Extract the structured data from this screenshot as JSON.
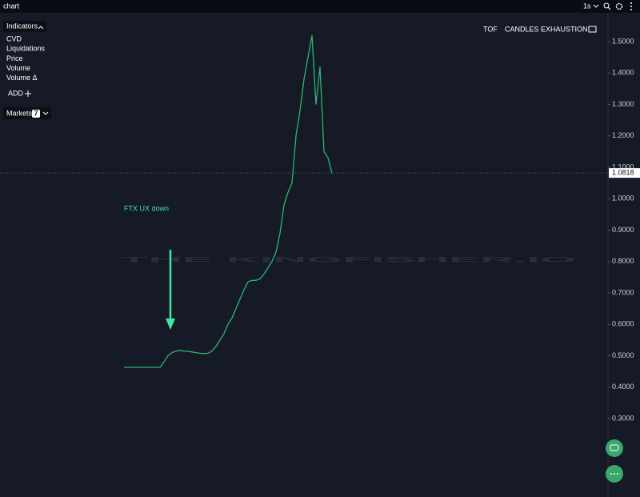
{
  "header": {
    "title": "chart",
    "interval": "1s"
  },
  "indicators": {
    "title": "Indicators",
    "items": [
      "CVD",
      "Liquidations",
      "Price",
      "Volume",
      "Volume Δ"
    ],
    "add": "ADD"
  },
  "markets": {
    "label": "Markets",
    "count": "7"
  },
  "toolbar": [
    "TOF",
    "CANDLES EXHAUSTION"
  ],
  "watermark": "THE KINGFISHER.IO",
  "chart_data": {
    "type": "line",
    "annotation": "FTX UX down",
    "values": [
      0.463,
      0.463,
      0.463,
      0.463,
      0.463,
      0.463,
      0.463,
      0.463,
      0.463,
      0.463,
      0.48,
      0.5,
      0.51,
      0.515,
      0.517,
      0.515,
      0.514,
      0.512,
      0.51,
      0.508,
      0.507,
      0.508,
      0.515,
      0.53,
      0.55,
      0.57,
      0.6,
      0.62,
      0.65,
      0.68,
      0.71,
      0.735,
      0.74,
      0.74,
      0.745,
      0.76,
      0.78,
      0.8,
      0.83,
      0.89,
      0.98,
      1.02,
      1.05,
      1.2,
      1.28,
      1.38,
      1.45,
      1.52,
      1.3,
      1.42,
      1.15,
      1.13,
      1.08
    ],
    "color": "#2bb673",
    "last_price": 1.0818,
    "ylim": [
      0.0656,
      1.5815
    ],
    "yticks": [
      {
        "value": 0.3,
        "label": "0.3000"
      },
      {
        "value": 0.4,
        "label": "0.4000"
      },
      {
        "value": 0.5,
        "label": "0.5000"
      },
      {
        "value": 0.6,
        "label": "0.6000"
      },
      {
        "value": 0.7,
        "label": "0.7000"
      },
      {
        "value": 0.8,
        "label": "0.8000"
      },
      {
        "value": 0.9,
        "label": "0.9000"
      },
      {
        "value": 1.0,
        "label": "1.0000"
      },
      {
        "value": 1.1,
        "label": "1.1000"
      },
      {
        "value": 1.2,
        "label": "1.2000"
      },
      {
        "value": 1.3,
        "label": "1.3000"
      },
      {
        "value": 1.4,
        "label": "1.4000"
      },
      {
        "value": 1.5,
        "label": "1.5000"
      }
    ]
  }
}
